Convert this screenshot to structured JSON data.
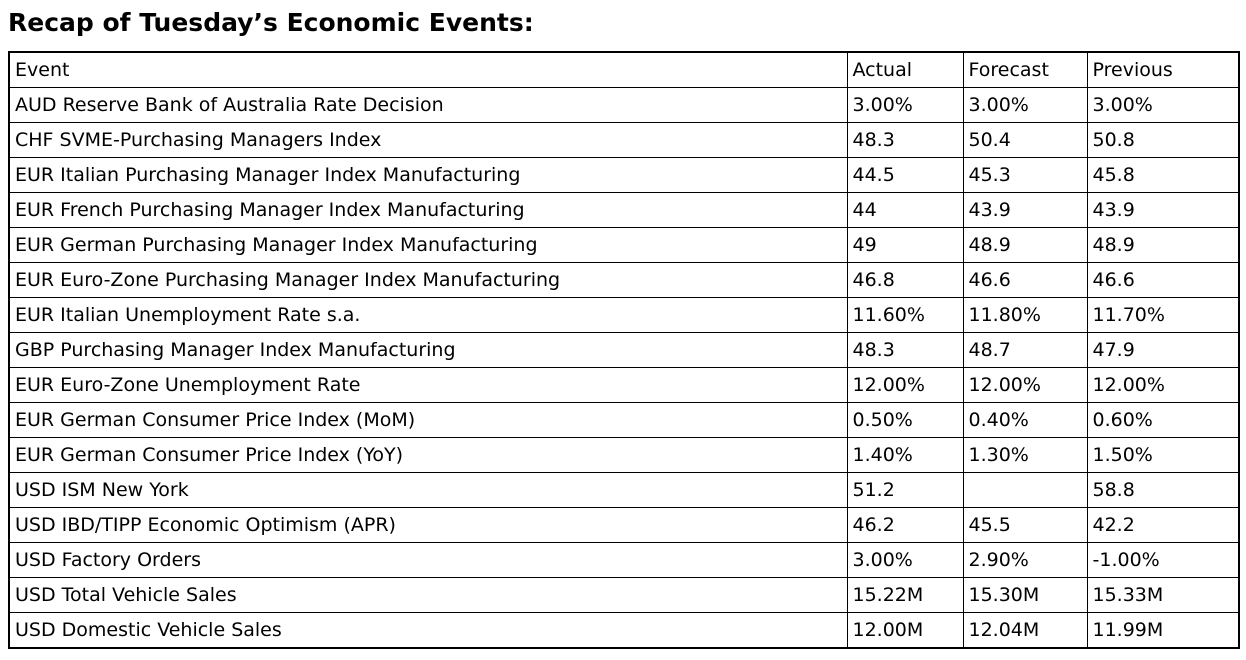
{
  "page": {
    "title": "Recap of Tuesday’s Economic Events:"
  },
  "table": {
    "headers": [
      "Event",
      "Actual",
      "Forecast",
      "Previous"
    ],
    "rows": [
      {
        "event": "AUD Reserve Bank of Australia Rate Decision",
        "actual": "3.00%",
        "forecast": "3.00%",
        "previous": "3.00%"
      },
      {
        "event": "CHF SVME-Purchasing Managers Index",
        "actual": "48.3",
        "forecast": "50.4",
        "previous": "50.8"
      },
      {
        "event": "EUR Italian Purchasing Manager Index Manufacturing",
        "actual": "44.5",
        "forecast": "45.3",
        "previous": "45.8"
      },
      {
        "event": "EUR French Purchasing Manager Index Manufacturing",
        "actual": "44",
        "forecast": "43.9",
        "previous": "43.9"
      },
      {
        "event": "EUR German Purchasing Manager Index Manufacturing",
        "actual": "49",
        "forecast": "48.9",
        "previous": "48.9"
      },
      {
        "event": "EUR Euro-Zone Purchasing Manager Index Manufacturing",
        "actual": "46.8",
        "forecast": "46.6",
        "previous": "46.6"
      },
      {
        "event": "EUR Italian Unemployment Rate s.a.",
        "actual": "11.60%",
        "forecast": "11.80%",
        "previous": "11.70%"
      },
      {
        "event": "GBP Purchasing Manager Index Manufacturing",
        "actual": "48.3",
        "forecast": "48.7",
        "previous": "47.9"
      },
      {
        "event": "EUR Euro-Zone Unemployment Rate",
        "actual": "12.00%",
        "forecast": "12.00%",
        "previous": "12.00%"
      },
      {
        "event": "EUR German Consumer Price Index (MoM)",
        "actual": "0.50%",
        "forecast": "0.40%",
        "previous": "0.60%"
      },
      {
        "event": "EUR German Consumer Price Index (YoY)",
        "actual": "1.40%",
        "forecast": "1.30%",
        "previous": "1.50%"
      },
      {
        "event": "USD ISM New York",
        "actual": "51.2",
        "forecast": "",
        "previous": "58.8"
      },
      {
        "event": "USD IBD/TIPP Economic Optimism (APR)",
        "actual": "46.2",
        "forecast": "45.5",
        "previous": "42.2"
      },
      {
        "event": "USD Factory Orders",
        "actual": "3.00%",
        "forecast": "2.90%",
        "previous": "-1.00%"
      },
      {
        "event": "USD Total Vehicle Sales",
        "actual": "15.22M",
        "forecast": "15.30M",
        "previous": "15.33M"
      },
      {
        "event": "USD Domestic Vehicle Sales",
        "actual": "12.00M",
        "forecast": "12.04M",
        "previous": "11.99M"
      }
    ]
  }
}
